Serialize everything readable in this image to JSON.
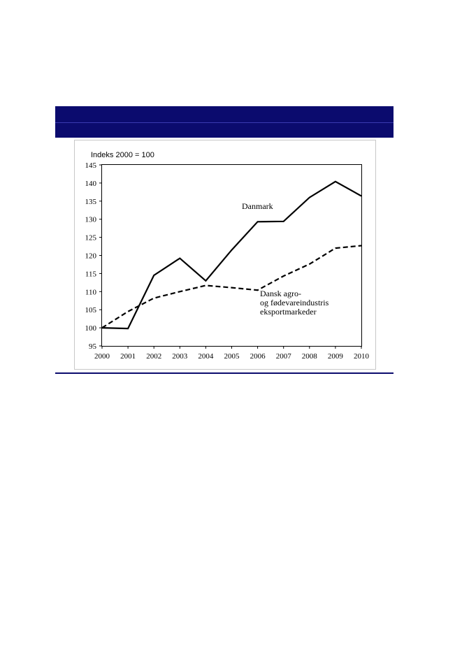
{
  "chart_data": {
    "type": "line",
    "ylabel": "Indeks 2000 = 100",
    "x": [
      "2000",
      "2001",
      "2002",
      "2003",
      "2004",
      "2005",
      "2006",
      "2007",
      "2008",
      "2009",
      "2010"
    ],
    "ylim": [
      95,
      145
    ],
    "yticks": [
      "95",
      "100",
      "105",
      "110",
      "115",
      "120",
      "125",
      "130",
      "135",
      "140",
      "145"
    ],
    "grid": false,
    "series": [
      {
        "name": "Danmark",
        "style": "solid",
        "values": [
          100,
          99.8,
          114.5,
          119.2,
          113,
          121.5,
          129.3,
          129.4,
          136,
          140.4,
          136.4
        ]
      },
      {
        "name": "Dansk agro- og fødevareindustris eksportmarkeder",
        "label_lines": [
          "Dansk agro-",
          "og fødevareindustris",
          "eksportmarkeder"
        ],
        "style": "dashed",
        "values": [
          100,
          104.5,
          108.2,
          110,
          111.7,
          111.1,
          110.4,
          114.3,
          117.6,
          122,
          122.7
        ]
      }
    ]
  },
  "colors": {
    "band": "#0b0b6e",
    "series": "#000000"
  }
}
